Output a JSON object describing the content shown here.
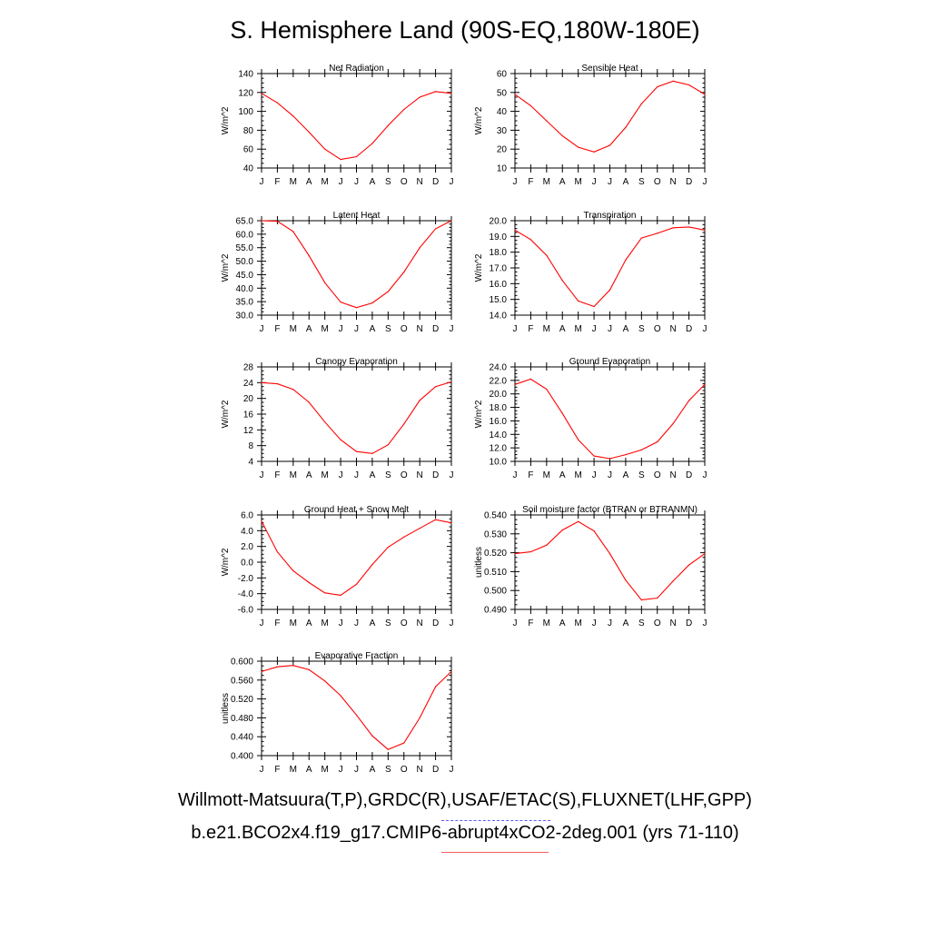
{
  "title": "S. Hemisphere Land (90S-EQ,180W-180E)",
  "footer": {
    "observations": "Willmott-Matsuura(T,P),GRDC(R),USAF/ETAC(S),FLUXNET(LHF,GPP)",
    "model_run": "b.e21.BCO2x4.f19_g17.CMIP6-abrupt4xCO2-2deg.001 (yrs 71-110)"
  },
  "colors": {
    "model_line": "#ff0000",
    "obs_dash": "#5b5bf5",
    "axis": "#000000"
  },
  "chart_data": [
    {
      "type": "line",
      "title": "Net Radiation",
      "ylabel": "W/m^2",
      "ylim": [
        40,
        140
      ],
      "yticks": [
        "40",
        "60",
        "80",
        "100",
        "120",
        "140"
      ],
      "categories": [
        "J",
        "F",
        "M",
        "A",
        "M",
        "J",
        "J",
        "A",
        "S",
        "O",
        "N",
        "D",
        "J"
      ],
      "values": [
        119,
        109,
        95,
        78,
        60,
        49,
        52,
        66,
        85,
        102,
        115,
        121,
        119
      ]
    },
    {
      "type": "line",
      "title": "Sensible Heat",
      "ylabel": "W/m^2",
      "ylim": [
        10,
        60
      ],
      "yticks": [
        "10",
        "20",
        "30",
        "40",
        "50",
        "60"
      ],
      "categories": [
        "J",
        "F",
        "M",
        "A",
        "M",
        "J",
        "J",
        "A",
        "S",
        "O",
        "N",
        "D",
        "J"
      ],
      "values": [
        49,
        43,
        35,
        27,
        21,
        18.5,
        22,
        31.5,
        44,
        53,
        56,
        54,
        49
      ]
    },
    {
      "type": "line",
      "title": "Latent Heat",
      "ylabel": "W/m^2",
      "ylim": [
        30,
        65
      ],
      "yticks": [
        "30.0",
        "35.0",
        "40.0",
        "45.0",
        "50.0",
        "55.0",
        "60.0",
        "65.0"
      ],
      "categories": [
        "J",
        "F",
        "M",
        "A",
        "M",
        "J",
        "J",
        "A",
        "S",
        "O",
        "N",
        "D",
        "J"
      ],
      "values": [
        65,
        64.8,
        61,
        52,
        42,
        34.8,
        32.8,
        34.5,
        38.7,
        46,
        55,
        62,
        65
      ]
    },
    {
      "type": "line",
      "title": "Transpiration",
      "ylabel": "W/m^2",
      "ylim": [
        14,
        20
      ],
      "yticks": [
        "14.0",
        "15.0",
        "16.0",
        "17.0",
        "18.0",
        "19.0",
        "20.0"
      ],
      "categories": [
        "J",
        "F",
        "M",
        "A",
        "M",
        "J",
        "J",
        "A",
        "S",
        "O",
        "N",
        "D",
        "J"
      ],
      "values": [
        19.4,
        18.8,
        17.8,
        16.2,
        14.9,
        14.55,
        15.6,
        17.5,
        18.9,
        19.2,
        19.55,
        19.6,
        19.4
      ]
    },
    {
      "type": "line",
      "title": "Canopy Evaporation",
      "ylabel": "W/m^2",
      "ylim": [
        4,
        28
      ],
      "yticks": [
        "4",
        "8",
        "12",
        "16",
        "20",
        "24",
        "28"
      ],
      "categories": [
        "J",
        "F",
        "M",
        "A",
        "M",
        "J",
        "J",
        "A",
        "S",
        "O",
        "N",
        "D",
        "J"
      ],
      "values": [
        24,
        23.7,
        22.3,
        19,
        14,
        9.5,
        6.5,
        6,
        8.2,
        13.5,
        19.5,
        23,
        24.2
      ]
    },
    {
      "type": "line",
      "title": "Ground Evaporation",
      "ylabel": "W/m^2",
      "ylim": [
        10,
        24
      ],
      "yticks": [
        "10.0",
        "12.0",
        "14.0",
        "16.0",
        "18.0",
        "20.0",
        "22.0",
        "24.0"
      ],
      "categories": [
        "J",
        "F",
        "M",
        "A",
        "M",
        "J",
        "J",
        "A",
        "S",
        "O",
        "N",
        "D",
        "J"
      ],
      "values": [
        21.4,
        22.2,
        20.7,
        17.1,
        13.2,
        10.8,
        10.4,
        11,
        11.7,
        12.9,
        15.6,
        19,
        21.4
      ]
    },
    {
      "type": "line",
      "title": "Ground Heat + Snow Melt",
      "ylabel": "W/m^2",
      "ylim": [
        -6,
        6
      ],
      "yticks": [
        "-6.0",
        "-4.0",
        "-2.0",
        "0.0",
        "2.0",
        "4.0",
        "6.0"
      ],
      "categories": [
        "J",
        "F",
        "M",
        "A",
        "M",
        "J",
        "J",
        "A",
        "S",
        "O",
        "N",
        "D",
        "J"
      ],
      "values": [
        5.2,
        1.3,
        -1.1,
        -2.6,
        -3.9,
        -4.2,
        -2.8,
        -0.3,
        1.9,
        3.2,
        4.3,
        5.4,
        5
      ]
    },
    {
      "type": "line",
      "title": "Soil moisture factor (BTRAN or BTRANMN)",
      "ylabel": "unitless",
      "ylim": [
        0.49,
        0.54
      ],
      "yticks": [
        "0.490",
        "0.500",
        "0.510",
        "0.520",
        "0.530",
        "0.540"
      ],
      "categories": [
        "J",
        "F",
        "M",
        "A",
        "M",
        "J",
        "J",
        "A",
        "S",
        "O",
        "N",
        "D",
        "J"
      ],
      "values": [
        0.5195,
        0.5205,
        0.524,
        0.532,
        0.5365,
        0.5315,
        0.5195,
        0.5055,
        0.495,
        0.496,
        0.505,
        0.5135,
        0.5195
      ]
    },
    {
      "type": "line",
      "title": "Evaporative Fraction",
      "ylabel": "unitless",
      "ylim": [
        0.4,
        0.6
      ],
      "yticks": [
        "0.400",
        "0.440",
        "0.480",
        "0.520",
        "0.560",
        "0.600"
      ],
      "categories": [
        "J",
        "F",
        "M",
        "A",
        "M",
        "J",
        "J",
        "A",
        "S",
        "O",
        "N",
        "D",
        "J"
      ],
      "values": [
        0.578,
        0.588,
        0.591,
        0.582,
        0.558,
        0.527,
        0.486,
        0.442,
        0.413,
        0.427,
        0.48,
        0.546,
        0.578
      ]
    }
  ]
}
